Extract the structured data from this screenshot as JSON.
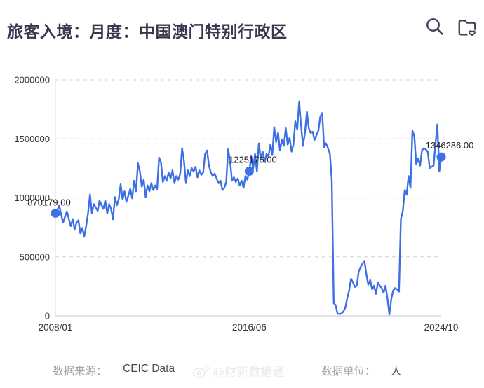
{
  "header": {
    "title": "旅客入境：月度：中国澳门特别行政区"
  },
  "footer": {
    "source_label": "数据来源：",
    "source_value": "CEIC Data",
    "unit_label": "数据单位：",
    "unit_value": "人",
    "watermark": "@财新数据通"
  },
  "chart_data": {
    "type": "line",
    "title": "旅客入境：月度：中国澳门特别行政区",
    "frequency": "monthly",
    "x_range": [
      "2008/01",
      "2024/10"
    ],
    "x_ticks": [
      {
        "label": "2008/01",
        "index": 0
      },
      {
        "label": "2016/06",
        "index": 101
      },
      {
        "label": "2024/10",
        "index": 201
      }
    ],
    "y_ticks": [
      0,
      500000,
      1000000,
      1500000,
      2000000
    ],
    "ylim": [
      0,
      2000000
    ],
    "grid": "horizontal-dashed",
    "legend": "none",
    "line_color": "#3d6fe5",
    "annotated_points": [
      {
        "index": 0,
        "x_label": "2008/01",
        "value": 870179,
        "label": "870179.00"
      },
      {
        "index": 101,
        "x_label": "2016/06",
        "value": 1225176,
        "label": "1225176.00"
      },
      {
        "index": 201,
        "x_label": "2024/10",
        "value": 1346286,
        "label": "1346286.00"
      }
    ],
    "values": [
      870179,
      900000,
      935000,
      860000,
      790000,
      840000,
      885000,
      820000,
      760000,
      820000,
      730000,
      790000,
      810000,
      700000,
      745000,
      670000,
      760000,
      870000,
      1029000,
      868000,
      947000,
      917000,
      890000,
      976000,
      940000,
      907000,
      976000,
      868000,
      947000,
      905000,
      818000,
      1006000,
      937000,
      990000,
      1115000,
      986000,
      1055000,
      966000,
      1020000,
      1075000,
      996000,
      1145000,
      1055000,
      1293000,
      1223000,
      1095000,
      1154000,
      1006000,
      1105000,
      1055000,
      1124000,
      1065000,
      1105000,
      1075000,
      1342000,
      1302000,
      1134000,
      1184000,
      1145000,
      1214000,
      1164000,
      1233000,
      1124000,
      1184000,
      1154000,
      1204000,
      1421000,
      1312000,
      1124000,
      1233000,
      1184000,
      1253000,
      1223000,
      1263000,
      1174000,
      1233000,
      1194000,
      1214000,
      1372000,
      1401000,
      1273000,
      1214000,
      1184000,
      1204000,
      1164000,
      1124000,
      1145000,
      1065000,
      1085000,
      1134000,
      1411000,
      1312000,
      1145000,
      1174000,
      1134000,
      1164000,
      1105000,
      1145000,
      1085000,
      1184000,
      1154000,
      1225176,
      1352000,
      1243000,
      1372000,
      1223000,
      1461000,
      1332000,
      1392000,
      1303000,
      1372000,
      1352000,
      1451000,
      1362000,
      1599000,
      1471000,
      1550000,
      1401000,
      1490000,
      1441000,
      1590000,
      1451000,
      1510000,
      1392000,
      1451000,
      1649000,
      1580000,
      1817000,
      1609000,
      1441000,
      1550000,
      1728000,
      1590000,
      1550000,
      1560000,
      1490000,
      1530000,
      1570000,
      1688000,
      1718000,
      1431000,
      1461000,
      1421000,
      1372000,
      1150000,
      107000,
      91000,
      18000,
      15000,
      20000,
      35000,
      67000,
      146000,
      215000,
      314000,
      284000,
      245000,
      255000,
      374000,
      413000,
      442000,
      466000,
      353000,
      264000,
      304000,
      225000,
      255000,
      186000,
      284000,
      255000,
      235000,
      196000,
      255000,
      146000,
      12000,
      146000,
      215000,
      235000,
      225000,
      205000,
      820000,
      890000,
      1065000,
      1026000,
      1184000,
      1085000,
      1569000,
      1520000,
      1283000,
      1332000,
      1273000,
      1401000,
      1421000,
      1411000,
      1391000,
      1253000,
      1263000,
      1273000,
      1450000,
      1622000,
      1223000,
      1346286
    ]
  }
}
